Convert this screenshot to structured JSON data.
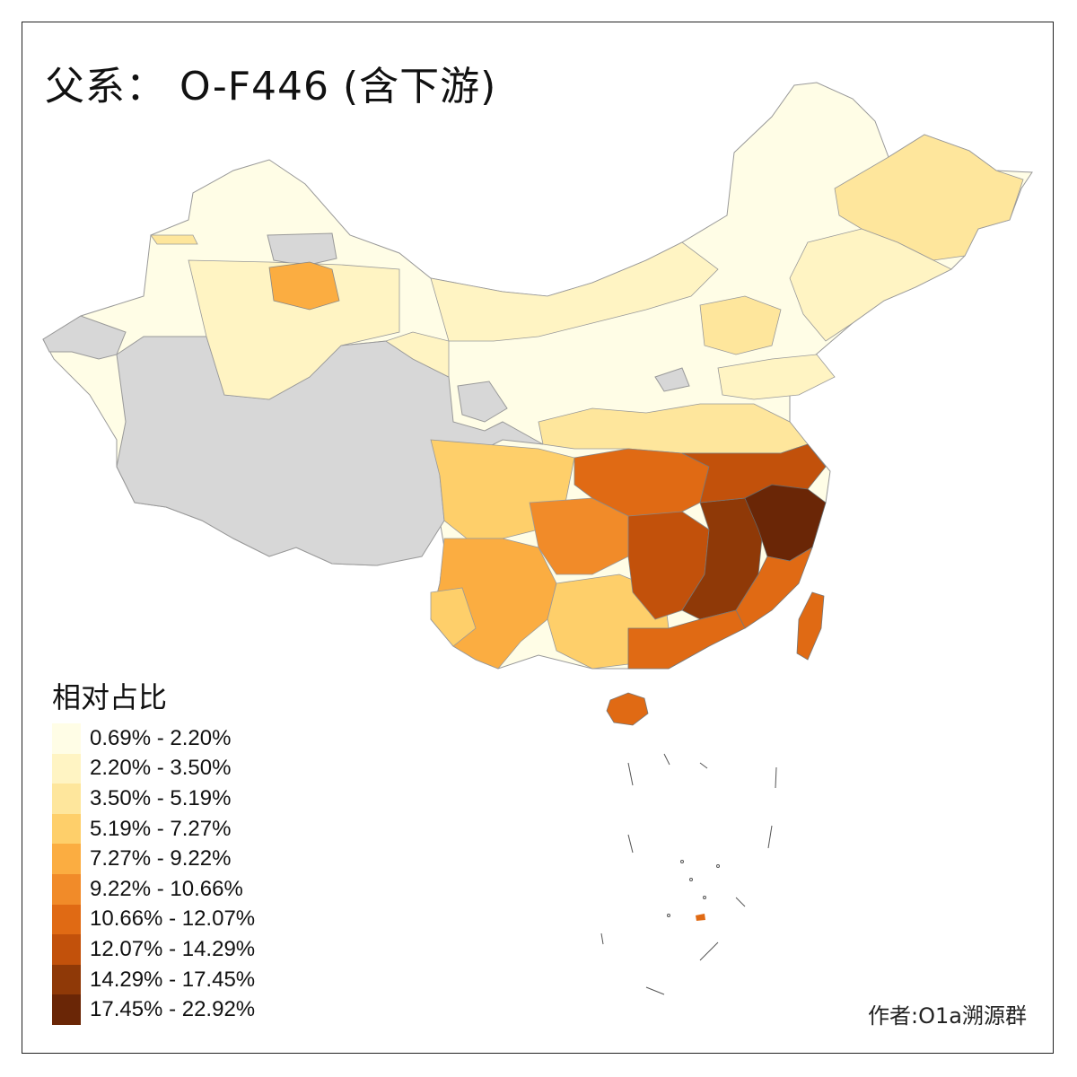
{
  "title": "父系： O-F446 (含下游)",
  "legend": {
    "title": "相对占比",
    "classes": [
      {
        "label": "0.69% - 2.20%",
        "color": "#fffde6"
      },
      {
        "label": "2.20% - 3.50%",
        "color": "#fff4c3"
      },
      {
        "label": "3.50% - 5.19%",
        "color": "#fee69c"
      },
      {
        "label": "5.19% - 7.27%",
        "color": "#fecf6a"
      },
      {
        "label": "7.27% - 9.22%",
        "color": "#fbad41"
      },
      {
        "label": "9.22% - 10.66%",
        "color": "#f18b29"
      },
      {
        "label": "10.66% - 12.07%",
        "color": "#e06a14"
      },
      {
        "label": "12.07% - 14.29%",
        "color": "#c2510b"
      },
      {
        "label": "14.29% - 17.45%",
        "color": "#8f3907"
      },
      {
        "label": "17.45% - 22.92%",
        "color": "#6a2606"
      }
    ],
    "no_data_color": "#d7d7d7"
  },
  "credit": "作者:O1a溯源群"
}
